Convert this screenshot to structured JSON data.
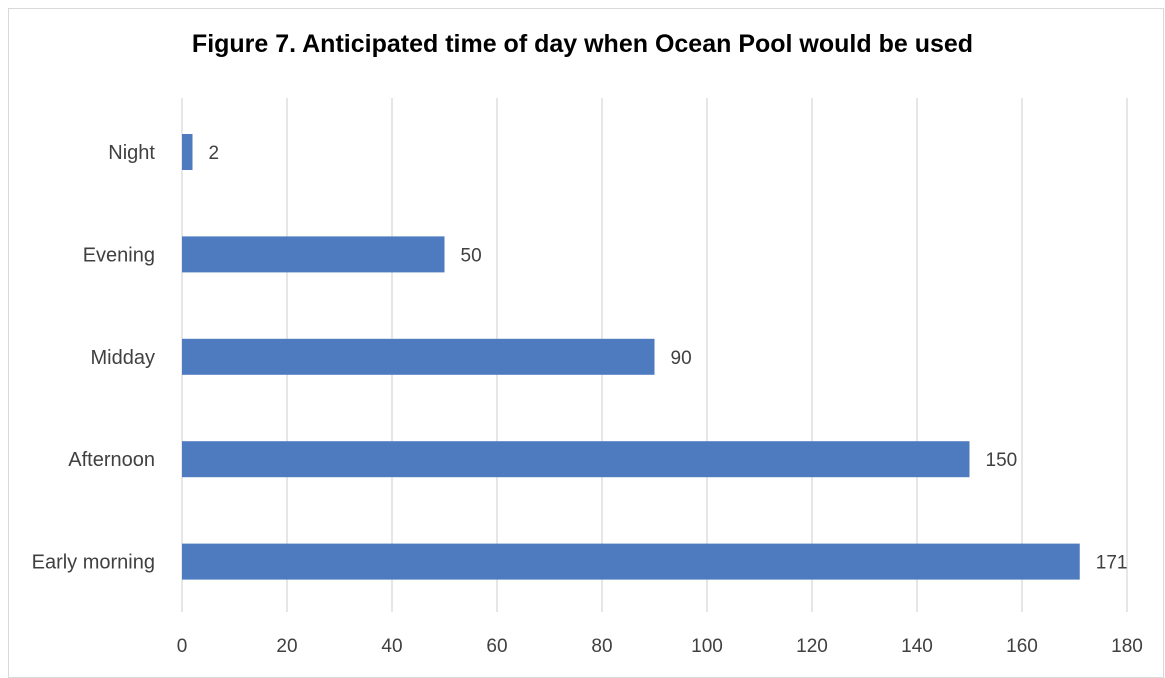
{
  "chart_data": {
    "type": "bar",
    "orientation": "horizontal",
    "title": "Figure 7. Anticipated time of day when Ocean Pool would be used",
    "categories": [
      "Night",
      "Evening",
      "Midday",
      "Afternoon",
      "Early morning"
    ],
    "values": [
      2,
      50,
      90,
      150,
      171
    ],
    "xlim": [
      0,
      180
    ],
    "x_ticks": [
      0,
      20,
      40,
      60,
      80,
      100,
      120,
      140,
      160,
      180
    ],
    "grid": "vertical",
    "data_labels": true,
    "colors": {
      "bar": "#4e7bbf",
      "grid": "#d9d9d9",
      "text": "#404040",
      "title": "#000000"
    }
  }
}
